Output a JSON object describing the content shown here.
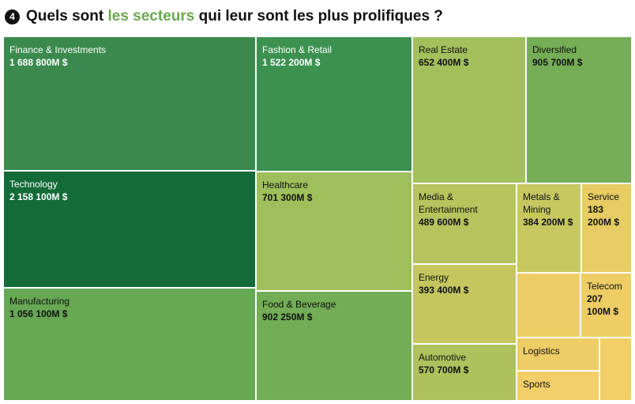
{
  "header": {
    "step_number": "4",
    "title_before": "Quels sont",
    "title_highlight": "les secteurs",
    "title_after": "qui leur sont les plus prolifiques ?"
  },
  "colors": {
    "highlight": "#6aa84f",
    "dark_green": "#136b38",
    "mid_green": "#3c9150",
    "light_green": "#67a855",
    "yellow_green": "#9fbf5c",
    "olive": "#bfc75e",
    "pale_yellow": "#e6cc62",
    "yellow": "#f0ce67"
  },
  "chart_data": {
    "type": "treemap",
    "unit": "M $",
    "items": [
      {
        "name": "Finance & Investments",
        "label_value": "1 688 800M $",
        "value": 1688800,
        "color": "#3a8a4d",
        "text_color": "#ffffff"
      },
      {
        "name": "Technology",
        "label_value": "2 158 100M $",
        "value": 2158100,
        "color": "#136b38",
        "text_color": "#ffffff"
      },
      {
        "name": "Manufacturing",
        "label_value": "1 056 100M $",
        "value": 1056100,
        "color": "#67a855",
        "text_color": "#111111"
      },
      {
        "name": "Fashion & Retail",
        "label_value": "1 522 200M $",
        "value": 1522200,
        "color": "#3c9150",
        "text_color": "#ffffff"
      },
      {
        "name": "Healthcare",
        "label_value": "701 300M $",
        "value": 701300,
        "color": "#9fbf5c",
        "text_color": "#111111"
      },
      {
        "name": "Food & Beverage",
        "label_value": "902 250M $",
        "value": 902250,
        "color": "#73ad56",
        "text_color": "#111111"
      },
      {
        "name": "Real Estate",
        "label_value": "652 400M $",
        "value": 652400,
        "color": "#a3c05c",
        "text_color": "#111111"
      },
      {
        "name": "Diversified",
        "label_value": "905 700M $",
        "value": 905700,
        "color": "#75ae56",
        "text_color": "#111111"
      },
      {
        "name": "Media & Entertainment",
        "label_value": "489 600M $",
        "value": 489600,
        "color": "#b6c45d",
        "text_color": "#111111"
      },
      {
        "name": "Metals & Mining",
        "label_value": "384 200M $",
        "value": 384200,
        "color": "#c6c85f",
        "text_color": "#111111"
      },
      {
        "name": "Service",
        "label_value": "183 200M $",
        "value": 183200,
        "color": "#e6cc62",
        "text_color": "#111111"
      },
      {
        "name": "Energy",
        "label_value": "393 400M $",
        "value": 393400,
        "color": "#c4c75e",
        "text_color": "#111111"
      },
      {
        "name": "",
        "label_value": "",
        "value": 0,
        "color": "#f0ce67",
        "text_color": "#111111"
      },
      {
        "name": "Telecom",
        "label_value": "207 100M $",
        "value": 207100,
        "color": "#eecd64",
        "text_color": "#111111"
      },
      {
        "name": "Automotive",
        "label_value": "570 700M $",
        "value": 570700,
        "color": "#adc25c",
        "text_color": "#111111"
      },
      {
        "name": "Logistics",
        "label_value": "",
        "value": 0,
        "color": "#eecd66",
        "text_color": "#111111"
      },
      {
        "name": "",
        "label_value": "",
        "value": 0,
        "color": "#f2cf66",
        "text_color": "#111111"
      },
      {
        "name": "Sports",
        "label_value": "",
        "value": 0,
        "color": "#f2cf68",
        "text_color": "#111111"
      }
    ]
  }
}
